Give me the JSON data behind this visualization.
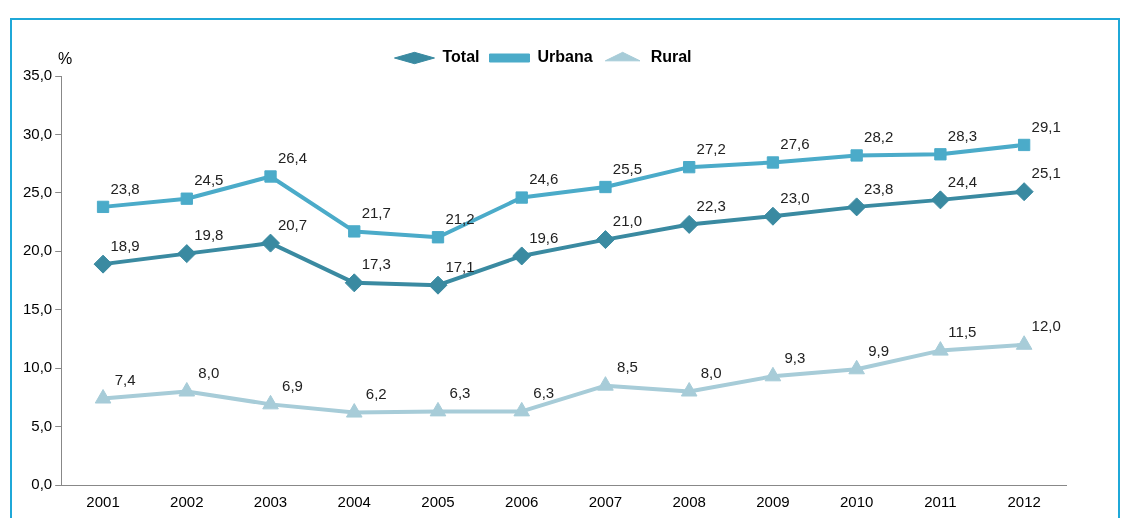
{
  "chart_data": {
    "type": "line",
    "ylabel": "%",
    "categories": [
      "2001",
      "2002",
      "2003",
      "2004",
      "2005",
      "2006",
      "2007",
      "2008",
      "2009",
      "2010",
      "2011",
      "2012"
    ],
    "ylim": [
      0,
      35
    ],
    "yticks": [
      {
        "value": 0,
        "label": "0,0"
      },
      {
        "value": 5,
        "label": "5,0"
      },
      {
        "value": 10,
        "label": "10,0"
      },
      {
        "value": 15,
        "label": "15,0"
      },
      {
        "value": 20,
        "label": "20,0"
      },
      {
        "value": 25,
        "label": "25,0"
      },
      {
        "value": 30,
        "label": "30,0"
      },
      {
        "value": 35,
        "label": "35,0"
      }
    ],
    "grid": false,
    "legend": "top",
    "line_style": "solid",
    "series": [
      {
        "name": "Total",
        "color": "#3a8aa1",
        "marker": "diamond",
        "values": [
          18.9,
          19.8,
          20.7,
          17.3,
          17.1,
          19.6,
          21.0,
          22.3,
          23.0,
          23.8,
          24.4,
          25.1
        ],
        "value_labels": [
          "18,9",
          "19,8",
          "20,7",
          "17,3",
          "17,1",
          "19,6",
          "21,0",
          "22,3",
          "23,0",
          "23,8",
          "24,4",
          "25,1"
        ]
      },
      {
        "name": "Urbana",
        "color": "#4babc9",
        "marker": "square",
        "values": [
          23.8,
          24.5,
          26.4,
          21.7,
          21.2,
          24.6,
          25.5,
          27.2,
          27.6,
          28.2,
          28.3,
          29.1
        ],
        "value_labels": [
          "23,8",
          "24,5",
          "26,4",
          "21,7",
          "21,2",
          "24,6",
          "25,5",
          "27,2",
          "27,6",
          "28,2",
          "28,3",
          "29,1"
        ]
      },
      {
        "name": "Rural",
        "color": "#a7ccd8",
        "marker": "triangle",
        "values": [
          7.4,
          8.0,
          6.9,
          6.2,
          6.3,
          6.3,
          8.5,
          8.0,
          9.3,
          9.9,
          11.5,
          12.0
        ],
        "value_labels": [
          "7,4",
          "8,0",
          "6,9",
          "6,2",
          "6,3",
          "6,3",
          "8,5",
          "8,0",
          "9,3",
          "9,9",
          "11,5",
          "12,0"
        ]
      }
    ]
  }
}
